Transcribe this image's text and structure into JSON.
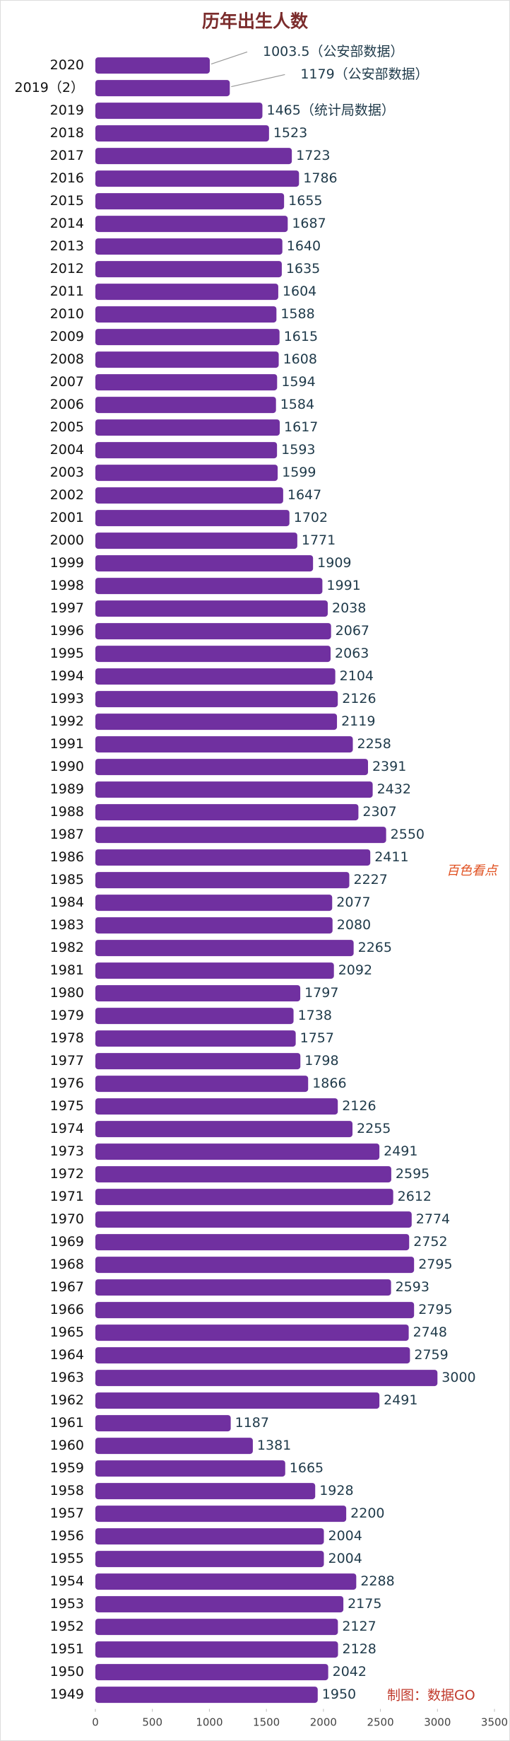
{
  "chart_data": {
    "type": "barh",
    "title": "历年出生人数",
    "categories": [
      "2020",
      "2019（2）",
      "2019",
      "2018",
      "2017",
      "2016",
      "2015",
      "2014",
      "2013",
      "2012",
      "2011",
      "2010",
      "2009",
      "2008",
      "2007",
      "2006",
      "2005",
      "2004",
      "2003",
      "2002",
      "2001",
      "2000",
      "1999",
      "1998",
      "1997",
      "1996",
      "1995",
      "1994",
      "1993",
      "1992",
      "1991",
      "1990",
      "1989",
      "1988",
      "1987",
      "1986",
      "1985",
      "1984",
      "1983",
      "1982",
      "1981",
      "1980",
      "1979",
      "1978",
      "1977",
      "1976",
      "1975",
      "1974",
      "1973",
      "1972",
      "1971",
      "1970",
      "1969",
      "1968",
      "1967",
      "1966",
      "1965",
      "1964",
      "1963",
      "1962",
      "1961",
      "1960",
      "1959",
      "1958",
      "1957",
      "1956",
      "1955",
      "1954",
      "1953",
      "1952",
      "1951",
      "1950",
      "1949"
    ],
    "values": [
      1003.5,
      1179,
      1465,
      1523,
      1723,
      1786,
      1655,
      1687,
      1640,
      1635,
      1604,
      1588,
      1615,
      1608,
      1594,
      1584,
      1617,
      1593,
      1599,
      1647,
      1702,
      1771,
      1909,
      1991,
      2038,
      2067,
      2063,
      2104,
      2126,
      2119,
      2258,
      2391,
      2432,
      2307,
      2550,
      2411,
      2227,
      2077,
      2080,
      2265,
      2092,
      1797,
      1738,
      1757,
      1798,
      1866,
      2126,
      2255,
      2491,
      2595,
      2612,
      2774,
      2752,
      2795,
      2593,
      2795,
      2748,
      2759,
      3000,
      2491,
      1187,
      1381,
      1665,
      1928,
      2200,
      2004,
      2004,
      2288,
      2175,
      2127,
      2128,
      2042,
      1950
    ],
    "value_labels": [
      "1003.5（公安部数据）",
      "1179（公安部数据）",
      "1465（统计局数据）",
      null,
      null,
      null,
      null,
      null,
      null,
      null,
      null,
      null,
      null,
      null,
      null,
      null,
      null,
      null,
      null,
      null,
      null,
      null,
      null,
      null,
      null,
      null,
      null,
      null,
      null,
      null,
      null,
      null,
      null,
      null,
      null,
      null,
      null,
      null,
      null,
      null,
      null,
      null,
      null,
      null,
      null,
      null,
      null,
      null,
      null,
      null,
      null,
      null,
      null,
      null,
      null,
      null,
      null,
      null,
      null,
      null,
      null,
      null,
      null,
      null,
      null,
      null,
      null,
      null,
      null,
      null,
      null,
      null,
      null
    ],
    "color": "#7030a0",
    "xlim": [
      0,
      3500
    ],
    "xticks": [
      0,
      500,
      1000,
      1500,
      2000,
      2500,
      3000,
      3500
    ],
    "footer": "制图：数据GO",
    "watermark": "百色看点"
  }
}
